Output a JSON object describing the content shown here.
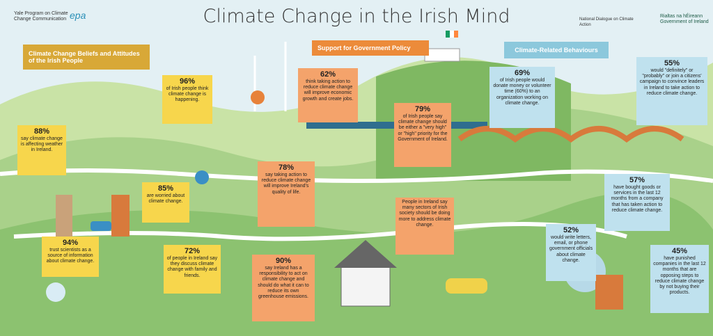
{
  "header": {
    "title": "Climate Change in the Irish Mind"
  },
  "logos": [
    "Yale Program on Climate Change Communication",
    "epa",
    "National Dialogue on Climate Action",
    "Rialtas na hÉireann Government of Ireland"
  ],
  "sections": [
    {
      "label": "Climate Change Beliefs and Attitudes of the Irish People",
      "stats": [
        {
          "value": "96%",
          "text": "of Irish people think climate change is happening."
        },
        {
          "value": "88%",
          "text": "say climate change is affecting weather in Ireland."
        },
        {
          "value": "85%",
          "text": "are worried about climate change."
        },
        {
          "value": "94%",
          "text": "trust scientists as a source of information about climate change."
        },
        {
          "value": "72%",
          "text": "of people in Ireland say they discuss climate change with family and friends."
        }
      ]
    },
    {
      "label": "Support for Government Policy",
      "stats": [
        {
          "value": "62%",
          "text": "think taking action to reduce climate change will improve economic growth and create jobs."
        },
        {
          "value": "79%",
          "text": "of Irish people say climate change should be either a \"very high\" or \"high\" priority for the Government of Ireland."
        },
        {
          "value": "78%",
          "text": "say taking action to reduce climate change will improve Ireland's quality of life."
        },
        {
          "value": "",
          "text": "People in Ireland say many sectors of Irish society should be doing more to address climate change."
        },
        {
          "value": "90%",
          "text": "say Ireland has a responsibility to act on climate change and should do what it can to reduce its own greenhouse emissions."
        }
      ]
    },
    {
      "label": "Climate-Related Behaviours",
      "stats": [
        {
          "value": "69%",
          "text": "of Irish people would donate money or volunteer time (60%) to an organization working on climate change."
        },
        {
          "value": "55%",
          "text": "would \"definitely\" or \"probably\" or join a citizens' campaign to convince leaders in Ireland to take action to reduce climate change."
        },
        {
          "value": "57%",
          "text": "have bought goods or services in the last 12 months from a company that has taken action to reduce climate change."
        },
        {
          "value": "52%",
          "text": "would write letters, email, or phone government officials about climate change."
        },
        {
          "value": "45%",
          "text": "have punished companies in the last 12 months that are opposing steps to reduce climate change by not buying their products."
        }
      ]
    }
  ]
}
